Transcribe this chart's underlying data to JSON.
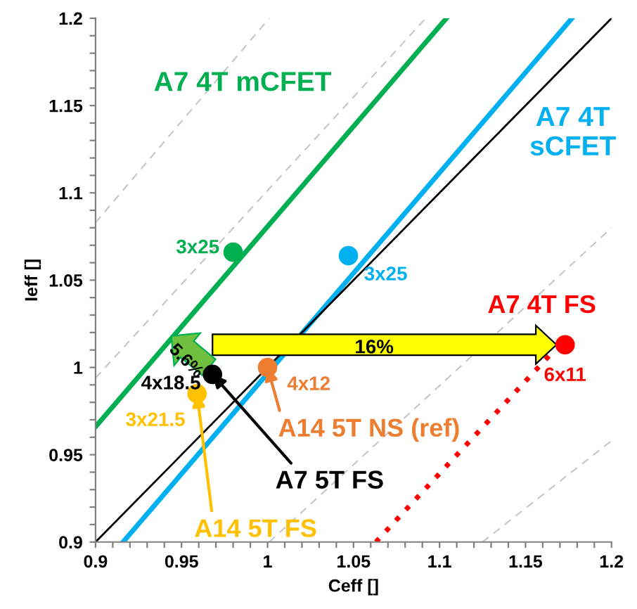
{
  "chart_data": {
    "type": "scatter",
    "xlabel": "Ceff []",
    "ylabel": "Ieff []",
    "xlim": [
      0.9,
      1.2
    ],
    "ylim": [
      0.9,
      1.2
    ],
    "xticks": [
      0.9,
      {
        "value": 0.91,
        "label": null
      },
      {
        "value": 0.92,
        "label": null
      },
      {
        "value": 0.93,
        "label": null
      },
      {
        "value": 0.94,
        "label": null
      },
      0.95,
      {
        "value": 0.96,
        "label": null
      },
      {
        "value": 0.97,
        "label": null
      },
      {
        "value": 0.98,
        "label": null
      },
      {
        "value": 0.99,
        "label": null
      },
      1,
      {
        "value": 1.01,
        "label": null
      },
      {
        "value": 1.02,
        "label": null
      },
      {
        "value": 1.03,
        "label": null
      },
      {
        "value": 1.04,
        "label": null
      },
      1.05,
      {
        "value": 1.06,
        "label": null
      },
      {
        "value": 1.07,
        "label": null
      },
      {
        "value": 1.08,
        "label": null
      },
      {
        "value": 1.09,
        "label": null
      },
      1.1,
      {
        "value": 1.11,
        "label": null
      },
      {
        "value": 1.12,
        "label": null
      },
      {
        "value": 1.13,
        "label": null
      },
      {
        "value": 1.14,
        "label": null
      },
      1.15,
      {
        "value": 1.16,
        "label": null
      },
      {
        "value": 1.17,
        "label": null
      },
      {
        "value": 1.18,
        "label": null
      },
      {
        "value": 1.19,
        "label": null
      },
      1.2
    ],
    "yticks": [
      0.9,
      {
        "value": 0.91,
        "label": null
      },
      {
        "value": 0.92,
        "label": null
      },
      {
        "value": 0.93,
        "label": null
      },
      {
        "value": 0.94,
        "label": null
      },
      0.95,
      {
        "value": 0.96,
        "label": null
      },
      {
        "value": 0.97,
        "label": null
      },
      {
        "value": 0.98,
        "label": null
      },
      {
        "value": 0.99,
        "label": null
      },
      1,
      {
        "value": 1.01,
        "label": null
      },
      {
        "value": 1.02,
        "label": null
      },
      {
        "value": 1.03,
        "label": null
      },
      {
        "value": 1.04,
        "label": null
      },
      1.05,
      {
        "value": 1.06,
        "label": null
      },
      {
        "value": 1.07,
        "label": null
      },
      {
        "value": 1.08,
        "label": null
      },
      {
        "value": 1.09,
        "label": null
      },
      1.1,
      {
        "value": 1.11,
        "label": null
      },
      {
        "value": 1.12,
        "label": null
      },
      {
        "value": 1.13,
        "label": null
      },
      {
        "value": 1.14,
        "label": null
      },
      1.15,
      {
        "value": 1.16,
        "label": null
      },
      {
        "value": 1.17,
        "label": null
      },
      {
        "value": 1.18,
        "label": null
      },
      {
        "value": 1.19,
        "label": null
      },
      1.2
    ],
    "grid": false,
    "legend": false,
    "series": [
      {
        "type": "line",
        "line_style": "dashed",
        "color": "#c8c8c8",
        "x": [
          0.9,
          1.001
        ],
        "values": [
          1.083,
          1.2
        ]
      },
      {
        "type": "line",
        "line_style": "dashed",
        "color": "#c8c8c8",
        "x": [
          0.9,
          1.092
        ],
        "values": [
          0.994,
          1.2
        ]
      },
      {
        "type": "line",
        "line_style": "dashed",
        "color": "#c8c8c8",
        "x": [
          1.001,
          1.2
        ],
        "values": [
          0.9,
          1.08
        ]
      },
      {
        "type": "line",
        "line_style": "dashed",
        "color": "#c8c8c8",
        "x": [
          1.125,
          1.2
        ],
        "values": [
          0.9,
          0.958
        ]
      },
      {
        "type": "line",
        "line_style": "solid",
        "color": "#00b050",
        "x": [
          0.9,
          1.104
        ],
        "values": [
          0.966,
          1.2
        ]
      },
      {
        "type": "line",
        "line_style": "solid",
        "color": "#00b0f0",
        "x": [
          0.916,
          1.177
        ],
        "values": [
          0.9,
          1.2
        ]
      },
      {
        "type": "line",
        "line_style": "solid",
        "color": "#000000",
        "x": [
          0.9,
          1.2
        ],
        "values": [
          0.9,
          1.2
        ]
      },
      {
        "type": "line",
        "line_style": "dotted",
        "color": "#ff0000",
        "x": [
          1.063,
          1.165
        ],
        "values": [
          0.9,
          1.008
        ]
      },
      {
        "marker": "circle",
        "color": "#00b050",
        "x": [
          0.98
        ],
        "values": [
          1.066
        ],
        "value_labels": [
          "3x25"
        ]
      },
      {
        "marker": "circle",
        "color": "#00b0f0",
        "x": [
          1.047
        ],
        "values": [
          1.064
        ],
        "value_labels": [
          "3x25"
        ]
      },
      {
        "marker": "circle",
        "color": "#ff0000",
        "x": [
          1.173
        ],
        "values": [
          1.013
        ],
        "value_labels": [
          "6x11"
        ]
      },
      {
        "marker": "circle",
        "color": "#000000",
        "x": [
          0.968
        ],
        "values": [
          0.996
        ],
        "value_labels": [
          "4x18.5"
        ]
      },
      {
        "marker": "circle",
        "color": "#ffc000",
        "x": [
          0.959
        ],
        "values": [
          0.985
        ],
        "value_labels": [
          "3x21.5"
        ]
      },
      {
        "marker": "circle",
        "color": "#ed7d31",
        "x": [
          1.0
        ],
        "values": [
          1.0
        ],
        "value_labels": [
          "4x12"
        ]
      }
    ],
    "annotations": [
      "A7 4T mCFET",
      "A7 4T\nsCFET",
      "A7 4T FS",
      "16%",
      "5.6%",
      {
        "text": "A7 5T FS",
        "x": 0.968,
        "y": 0.996
      },
      {
        "text": "A14 5T FS",
        "x": 0.959,
        "y": 0.985
      },
      {
        "text": "A14 5T NS (ref)",
        "x": 1.0,
        "y": 1.0
      }
    ]
  }
}
